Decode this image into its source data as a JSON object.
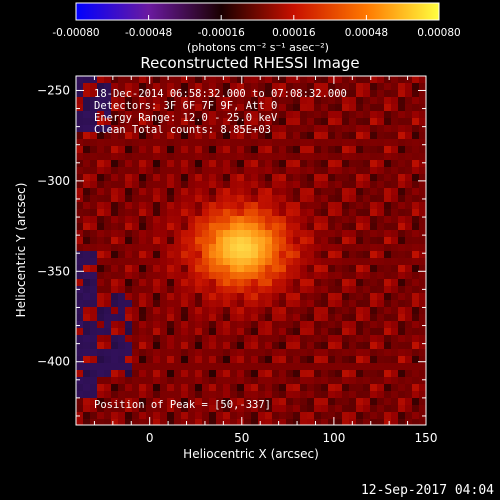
{
  "colorbar": {
    "ticks": [
      "-0.00080",
      "-0.00048",
      "-0.00016",
      "0.00016",
      "0.00048",
      "0.00080"
    ],
    "units_label": "(photons cm⁻² s⁻¹ asec⁻²)",
    "colors": [
      "#0000ff",
      "#6b1aa0",
      "#1a0000",
      "#c81000",
      "#ff7800",
      "#ffff40"
    ]
  },
  "chart_data": {
    "type": "heatmap",
    "title": "Reconstructed RHESSI Image",
    "xlabel": "Heliocentric X (arcsec)",
    "ylabel": "Heliocentric Y (arcsec)",
    "xlim": [
      -40,
      150
    ],
    "ylim": [
      -435,
      -242
    ],
    "xticks": [
      0,
      50,
      100,
      150
    ],
    "yticks": [
      -250,
      -300,
      -350,
      -400
    ],
    "peak": {
      "x": 50,
      "y": -337
    },
    "annotations": [
      "18-Dec-2014 06:58:32.000 to 07:08:32.000",
      "Detectors: 3F 6F 7F 9F, Att 0",
      "Energy Range: 12.0 - 25.0 keV",
      "Clean     Total counts: 8.85E+03"
    ],
    "peak_label": "Position of Peak = [50,-337]"
  },
  "footer": {
    "date": "12-Sep-2017 04:04"
  }
}
